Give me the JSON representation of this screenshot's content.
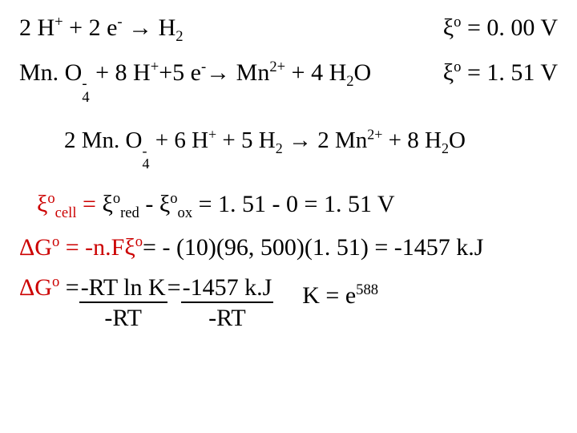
{
  "colors": {
    "text": "#000000",
    "accent": "#cc0000",
    "background": "#ffffff"
  },
  "halfreactions": [
    {
      "lhs_html": "2 H<sup>+</sup> + 2 e<sup>-</sup> <span class='arrow'>→</span> H<sub>2</sub>",
      "pot_symbol_html": "<span class='xi'>ξ</span><sup>o</sup>",
      "pot_eq": " = 0. 00 V"
    },
    {
      "lhs_html": "Mn. O<span class='supsub'><span class='sup'>-</span><span class='sub'>4</span></span> + 8 H<sup>+</sup>+5 e<sup>-</sup><span class='arrow'>→</span> Mn<sup>2+</sup> + 4 H<sub>2</sub>O",
      "pot_symbol_html": "<span class='xi'>ξ</span><sup>o</sup>",
      "pot_eq": " = 1. 51 V"
    }
  ],
  "overall_html": "2 Mn. O<span class='supsub'><span class='sup'>-</span><span class='sub'>4</span></span> + 6 H<sup>+</sup> + 5 H<sub>2</sub> <span class='arrow'>→</span> 2 Mn<sup>2+</sup> + 8 H<sub>2</sub>O",
  "cellpot": {
    "lhs_html": "<span class='xi red'>ξ</span><span class='red'><sup>o</sup><sub>cell</sub></span><span class='red'> = </span>",
    "mid_html": " <span class='xi'>ξ</span><sup>o</sup><sub>red</sub> - <span class='xi'>ξ</span><sup>o</sup><sub>ox</sub>",
    "calc": " = 1. 51 - 0 = 1. 51 V"
  },
  "dg1": {
    "lhs_red_html": "ΔG<sup>o</sup> = -n.F<span class='xi'>ξ</span><sup>o</sup>",
    "calc": "= - (10)(96, 500)(1. 51)  = -1457 k.J"
  },
  "dg2": {
    "lhs_red": "ΔG",
    "lhs_red_sup": "o",
    "eq_black": " = ",
    "num1": "-RT ln K",
    "denom1": "-RT",
    "eq2": "= ",
    "num2": "-1457 k.J",
    "denom2": "-RT",
    "rhs": "K = e",
    "rhs_sup": "588"
  }
}
